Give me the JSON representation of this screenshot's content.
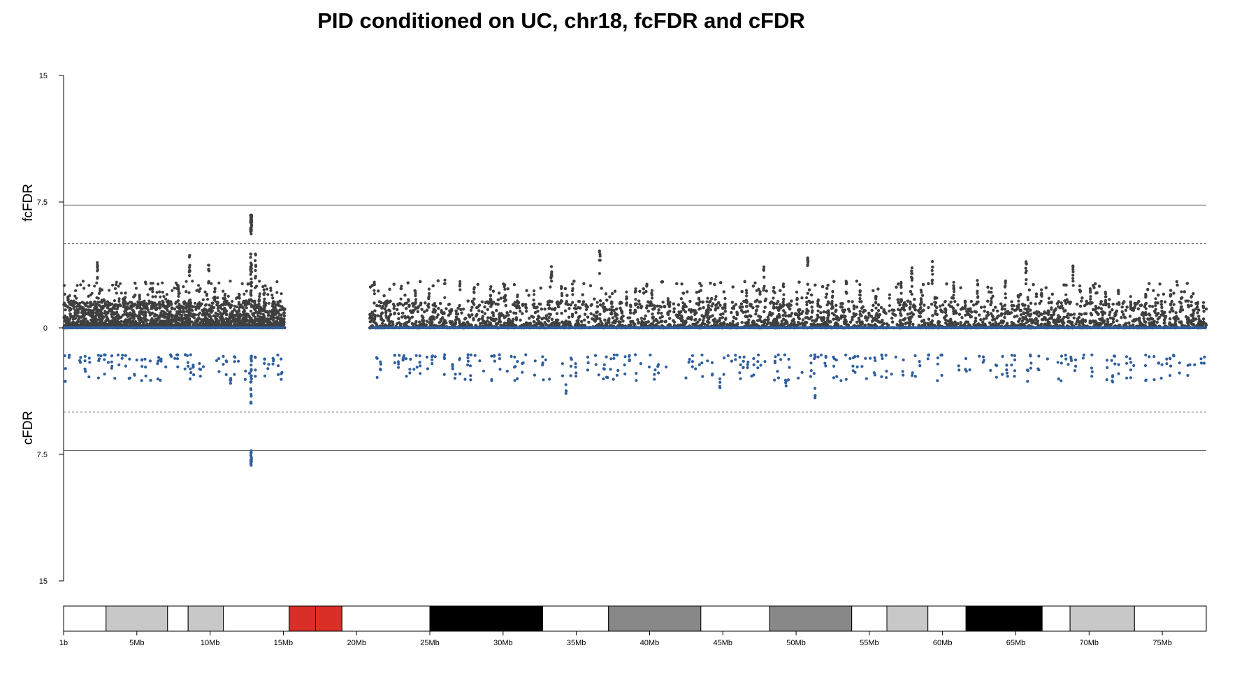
{
  "chart_data": {
    "type": "scatter",
    "title": "PID conditioned on UC, chr18, fcFDR and cFDR",
    "upper_panel": {
      "ylabel": "fcFDR",
      "y_ticks": [
        "15",
        "7.5",
        "0"
      ],
      "ylim": [
        0,
        15
      ],
      "point_color": "#3f3f3f",
      "baseline_color": "#2f5f9e",
      "significance_line": 7.3,
      "suggestive_line": 5.0,
      "peak": {
        "position_mb": 12.8,
        "value": 6.7
      },
      "max_background_value": 4.6
    },
    "lower_panel": {
      "ylabel": "cFDR",
      "y_ticks": [
        "7.5",
        "15"
      ],
      "ylim": [
        0,
        15
      ],
      "direction": "inverted",
      "point_color": "#2f5f9e",
      "significance_line": 7.3,
      "suggestive_line": 5.0,
      "peak": {
        "position_mb": 12.8,
        "value": 8.3
      },
      "band_min_value": 1.6,
      "band_max_value": 3.2
    },
    "x_axis": {
      "unit": "Mb",
      "xlim_mb": [
        0,
        78
      ],
      "tick_labels": [
        "1b",
        "5Mb",
        "10Mb",
        "15Mb",
        "20Mb",
        "25Mb",
        "30Mb",
        "35Mb",
        "40Mb",
        "45Mb",
        "50Mb",
        "55Mb",
        "60Mb",
        "65Mb",
        "70Mb",
        "75Mb"
      ],
      "tick_values_mb": [
        0,
        5,
        10,
        15,
        20,
        25,
        30,
        35,
        40,
        45,
        50,
        55,
        60,
        65,
        70,
        75
      ]
    },
    "data_segments_mb": [
      [
        0,
        15.1
      ],
      [
        20.9,
        78.0
      ]
    ],
    "ideogram_bands": [
      {
        "start": 0,
        "end": 2.9,
        "color": "#ffffff"
      },
      {
        "start": 2.9,
        "end": 7.1,
        "color": "#c8c8c8"
      },
      {
        "start": 7.1,
        "end": 8.5,
        "color": "#ffffff"
      },
      {
        "start": 8.5,
        "end": 10.9,
        "color": "#c8c8c8"
      },
      {
        "start": 10.9,
        "end": 15.4,
        "color": "#ffffff"
      },
      {
        "start": 15.4,
        "end": 17.2,
        "color": "#d92f27"
      },
      {
        "start": 17.2,
        "end": 19.0,
        "color": "#d92f27"
      },
      {
        "start": 19.0,
        "end": 25.0,
        "color": "#ffffff"
      },
      {
        "start": 25.0,
        "end": 32.7,
        "color": "#000000"
      },
      {
        "start": 32.7,
        "end": 37.2,
        "color": "#ffffff"
      },
      {
        "start": 37.2,
        "end": 43.5,
        "color": "#888888"
      },
      {
        "start": 43.5,
        "end": 48.2,
        "color": "#ffffff"
      },
      {
        "start": 48.2,
        "end": 53.8,
        "color": "#888888"
      },
      {
        "start": 53.8,
        "end": 56.2,
        "color": "#ffffff"
      },
      {
        "start": 56.2,
        "end": 59.0,
        "color": "#c8c8c8"
      },
      {
        "start": 59.0,
        "end": 61.6,
        "color": "#ffffff"
      },
      {
        "start": 61.6,
        "end": 66.8,
        "color": "#000000"
      },
      {
        "start": 66.8,
        "end": 68.7,
        "color": "#ffffff"
      },
      {
        "start": 68.7,
        "end": 73.1,
        "color": "#c8c8c8"
      },
      {
        "start": 73.1,
        "end": 78.0,
        "color": "#ffffff"
      }
    ],
    "peaks_upper": [
      {
        "x": 2.3,
        "v": 4.1
      },
      {
        "x": 8.6,
        "v": 4.6
      },
      {
        "x": 9.9,
        "v": 4.0
      },
      {
        "x": 13.1,
        "v": 4.4
      },
      {
        "x": 33.3,
        "v": 3.9
      },
      {
        "x": 36.6,
        "v": 4.6
      },
      {
        "x": 50.8,
        "v": 4.3
      },
      {
        "x": 59.3,
        "v": 4.1
      },
      {
        "x": 65.7,
        "v": 4.0
      },
      {
        "x": 68.9,
        "v": 3.9
      },
      {
        "x": 47.8,
        "v": 3.7
      },
      {
        "x": 57.9,
        "v": 3.6
      }
    ],
    "peaks_lower": [
      {
        "x": 34.3,
        "v": 3.9
      },
      {
        "x": 51.3,
        "v": 4.2
      },
      {
        "x": 49.3,
        "v": 3.5
      },
      {
        "x": 44.8,
        "v": 3.6
      },
      {
        "x": 11.4,
        "v": 3.4
      },
      {
        "x": 71.6,
        "v": 3.3
      }
    ]
  }
}
